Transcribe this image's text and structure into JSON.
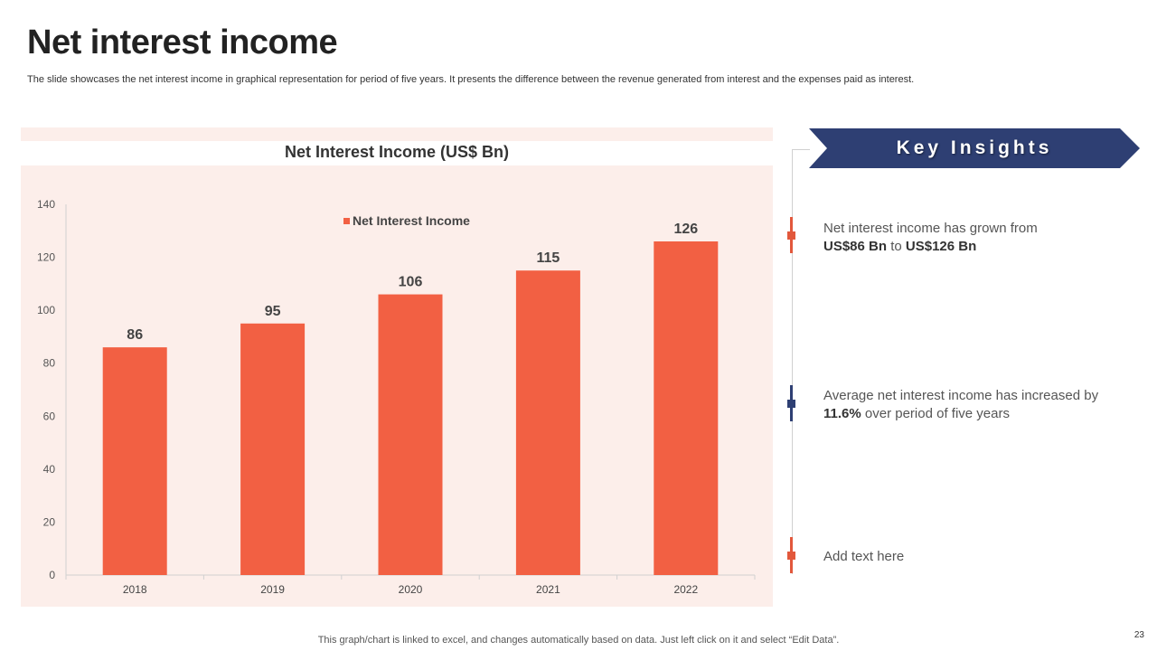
{
  "page": {
    "title": "Net interest income",
    "subtitle": "The slide showcases the net interest income in graphical representation for period of five years. It presents the difference between the revenue generated from interest and the expenses paid as interest.",
    "footer": "This graph/chart is linked to excel, and changes automatically based on data. Just left click on it and select “Edit Data”.",
    "page_number": "23"
  },
  "chart_data": {
    "type": "bar",
    "title": "Net Interest Income (US$ Bn)",
    "categories": [
      "2018",
      "2019",
      "2020",
      "2021",
      "2022"
    ],
    "series": [
      {
        "name": "Net Interest Income",
        "values": [
          86,
          95,
          106,
          115,
          126
        ]
      }
    ],
    "ylim": [
      0,
      140
    ],
    "yticks": [
      0,
      20,
      40,
      60,
      80,
      100,
      120,
      140
    ],
    "xlabel": "",
    "ylabel": "",
    "legend_position": "top-center",
    "grid": false
  },
  "insights": {
    "heading": "Key Insights",
    "items": [
      {
        "pre": "Net interest income has grown from",
        "b1": "US$86 Bn",
        "mid": " to ",
        "b2": "US$126 Bn"
      },
      {
        "pre": "Average net interest income has increased by ",
        "b1": "11.6%",
        "post": " over period of five years"
      },
      {
        "text": "Add text here"
      }
    ]
  },
  "colors": {
    "bar": "#f26043",
    "panel": "#fceeea",
    "navy": "#2e3f73",
    "accent": "#e2583c"
  }
}
